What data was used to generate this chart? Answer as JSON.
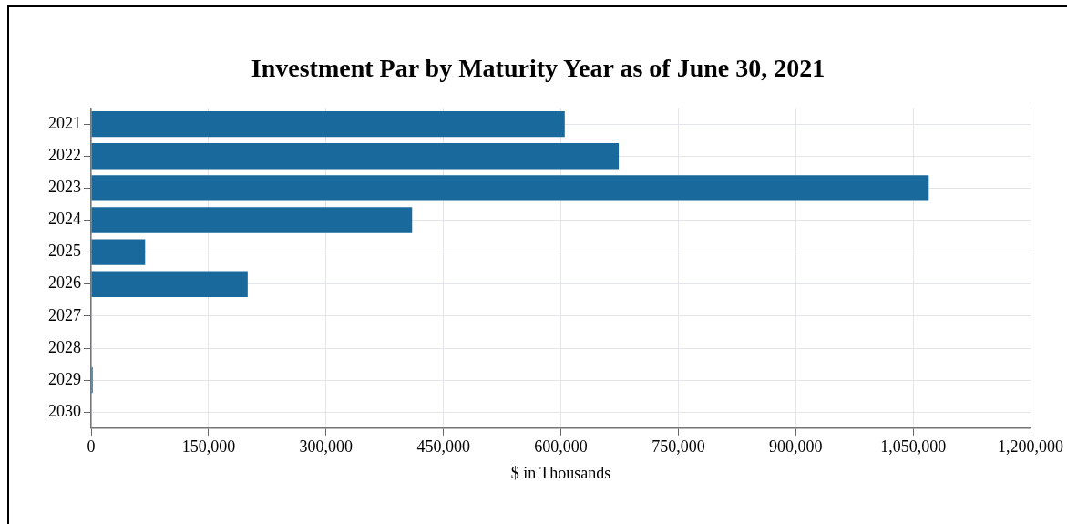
{
  "chart_data": {
    "type": "bar",
    "orientation": "horizontal",
    "title": "Investment Par by Maturity Year as of June 30, 2021",
    "xlabel": "$ in Thousands",
    "categories": [
      "2021",
      "2022",
      "2023",
      "2024",
      "2025",
      "2026",
      "2027",
      "2028",
      "2029",
      "2030"
    ],
    "values": [
      605000,
      674000,
      1070000,
      410000,
      69000,
      200000,
      0,
      0,
      2000,
      0
    ],
    "color": "#1a699c",
    "xlim": [
      0,
      1200000
    ],
    "xticks": [
      {
        "value": 0,
        "label": "0"
      },
      {
        "value": 150000,
        "label": "150,000"
      },
      {
        "value": 300000,
        "label": "300,000"
      },
      {
        "value": 450000,
        "label": "450,000"
      },
      {
        "value": 600000,
        "label": "600,000"
      },
      {
        "value": 750000,
        "label": "750,000"
      },
      {
        "value": 900000,
        "label": "900,000"
      },
      {
        "value": 1050000,
        "label": "1,050,000"
      },
      {
        "value": 1200000,
        "label": "1,200,000"
      }
    ],
    "grid": true,
    "legend": false
  }
}
